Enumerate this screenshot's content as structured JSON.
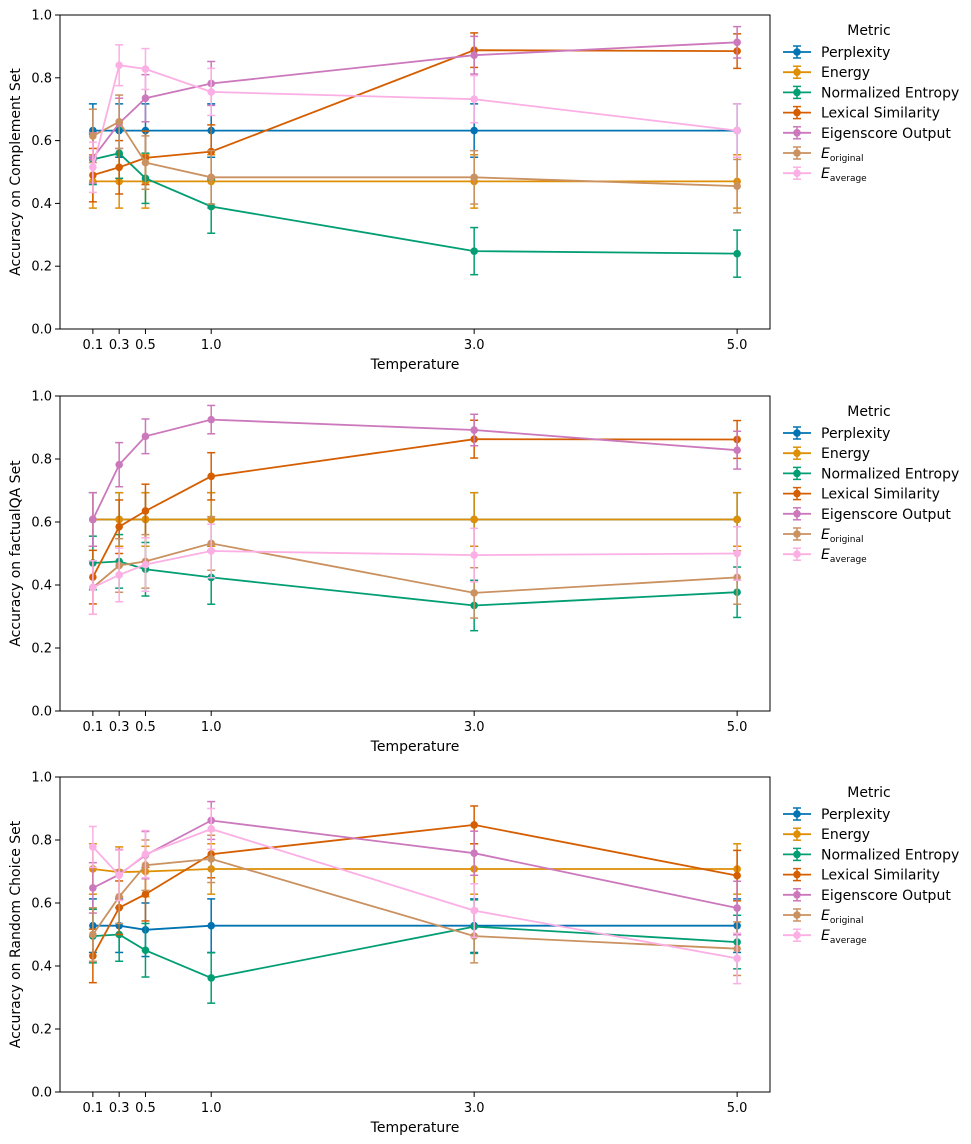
{
  "chart_data": [
    {
      "type": "line",
      "xlabel": "Temperature",
      "ylabel": "Accuracy on Complement Set",
      "ylim": [
        0,
        1
      ],
      "x": [
        0.1,
        0.3,
        0.5,
        1.0,
        3.0,
        5.0
      ],
      "x_tick_labels": [
        "0.1",
        "0.3",
        "0.5",
        "1.0",
        "3.0",
        "5.0"
      ],
      "y_ticks": [
        "0.0",
        "0.2",
        "0.4",
        "0.6",
        "0.8",
        "1.0"
      ],
      "legend_title": "Metric",
      "series": [
        {
          "name": "Perplexity",
          "color": "#0173b2",
          "values": [
            0.632,
            0.632,
            0.632,
            0.632,
            0.632,
            0.632
          ],
          "err": [
            0.085,
            0.085,
            0.085,
            0.085,
            0.085,
            0.085
          ]
        },
        {
          "name": "Energy",
          "color": "#de8f05",
          "values": [
            0.47,
            0.47,
            0.47,
            0.47,
            0.47,
            0.47
          ],
          "err": [
            0.085,
            0.085,
            0.085,
            0.085,
            0.085,
            0.085
          ]
        },
        {
          "name": "Normalized Entropy",
          "color": "#029e73",
          "values": [
            0.54,
            0.56,
            0.48,
            0.39,
            0.248,
            0.24
          ],
          "err": [
            0.08,
            0.08,
            0.08,
            0.085,
            0.075,
            0.075
          ]
        },
        {
          "name": "Lexical Similarity",
          "color": "#d55e00",
          "values": [
            0.49,
            0.515,
            0.545,
            0.565,
            0.888,
            0.885
          ],
          "err": [
            0.085,
            0.085,
            0.085,
            0.085,
            0.055,
            0.055
          ]
        },
        {
          "name": "Eigenscore Output",
          "color": "#cc78bc",
          "values": [
            0.545,
            0.655,
            0.735,
            0.782,
            0.872,
            0.913
          ],
          "err": [
            0.08,
            0.08,
            0.075,
            0.07,
            0.06,
            0.05
          ]
        },
        {
          "name": "E_original",
          "name_base": "E",
          "name_sub": "original",
          "color": "#ca9161",
          "values": [
            0.615,
            0.66,
            0.53,
            0.483,
            0.483,
            0.455
          ],
          "err": [
            0.085,
            0.085,
            0.085,
            0.085,
            0.085,
            0.085
          ]
        },
        {
          "name": "E_average",
          "name_base": "E",
          "name_sub": "average",
          "color": "#fbafe4",
          "values": [
            0.515,
            0.84,
            0.828,
            0.755,
            0.732,
            0.632
          ],
          "err": [
            0.08,
            0.065,
            0.065,
            0.075,
            0.075,
            0.085
          ]
        }
      ]
    },
    {
      "type": "line",
      "xlabel": "Temperature",
      "ylabel": "Accuracy on factualQA Set",
      "ylim": [
        0,
        1
      ],
      "x": [
        0.1,
        0.3,
        0.5,
        1.0,
        3.0,
        5.0
      ],
      "x_tick_labels": [
        "0.1",
        "0.3",
        "0.5",
        "1.0",
        "3.0",
        "5.0"
      ],
      "y_ticks": [
        "0.0",
        "0.2",
        "0.4",
        "0.6",
        "0.8",
        "1.0"
      ],
      "legend_title": "Metric",
      "series": [
        {
          "name": "Perplexity",
          "color": "#0173b2",
          "values": [
            0.608,
            0.608,
            0.608,
            0.608,
            0.608,
            0.608
          ],
          "err": [
            0.085,
            0.085,
            0.085,
            0.085,
            0.085,
            0.085
          ]
        },
        {
          "name": "Energy",
          "color": "#de8f05",
          "values": [
            0.608,
            0.608,
            0.608,
            0.608,
            0.608,
            0.608
          ],
          "err": [
            0.085,
            0.085,
            0.085,
            0.085,
            0.085,
            0.085
          ]
        },
        {
          "name": "Normalized Entropy",
          "color": "#029e73",
          "values": [
            0.47,
            0.475,
            0.45,
            0.424,
            0.335,
            0.377
          ],
          "err": [
            0.085,
            0.085,
            0.085,
            0.085,
            0.08,
            0.08
          ]
        },
        {
          "name": "Lexical Similarity",
          "color": "#d55e00",
          "values": [
            0.425,
            0.585,
            0.635,
            0.745,
            0.863,
            0.862
          ],
          "err": [
            0.085,
            0.085,
            0.085,
            0.075,
            0.06,
            0.06
          ]
        },
        {
          "name": "Eigenscore Output",
          "color": "#cc78bc",
          "values": [
            0.608,
            0.782,
            0.872,
            0.925,
            0.892,
            0.828
          ],
          "err": [
            0.085,
            0.07,
            0.055,
            0.045,
            0.05,
            0.06
          ]
        },
        {
          "name": "E_original",
          "name_base": "E",
          "name_sub": "original",
          "color": "#ca9161",
          "values": [
            0.392,
            0.462,
            0.475,
            0.532,
            0.375,
            0.424
          ],
          "err": [
            0.085,
            0.085,
            0.085,
            0.085,
            0.08,
            0.085
          ]
        },
        {
          "name": "E_average",
          "name_base": "E",
          "name_sub": "average",
          "color": "#fbafe4",
          "values": [
            0.392,
            0.432,
            0.465,
            0.508,
            0.495,
            0.5
          ],
          "err": [
            0.085,
            0.085,
            0.085,
            0.085,
            0.085,
            0.085
          ]
        }
      ]
    },
    {
      "type": "line",
      "xlabel": "Temperature",
      "ylabel": "Accuracy on Random Choice Set",
      "ylim": [
        0,
        1
      ],
      "x": [
        0.1,
        0.3,
        0.5,
        1.0,
        3.0,
        5.0
      ],
      "x_tick_labels": [
        "0.1",
        "0.3",
        "0.5",
        "1.0",
        "3.0",
        "5.0"
      ],
      "y_ticks": [
        "0.0",
        "0.2",
        "0.4",
        "0.6",
        "0.8",
        "1.0"
      ],
      "legend_title": "Metric",
      "series": [
        {
          "name": "Perplexity",
          "color": "#0173b2",
          "values": [
            0.528,
            0.528,
            0.515,
            0.528,
            0.528,
            0.528
          ],
          "err": [
            0.085,
            0.085,
            0.085,
            0.085,
            0.085,
            0.085
          ]
        },
        {
          "name": "Energy",
          "color": "#de8f05",
          "values": [
            0.708,
            0.698,
            0.7,
            0.708,
            0.708,
            0.708
          ],
          "err": [
            0.08,
            0.08,
            0.08,
            0.08,
            0.08,
            0.08
          ]
        },
        {
          "name": "Normalized Entropy",
          "color": "#029e73",
          "values": [
            0.495,
            0.5,
            0.45,
            0.362,
            0.525,
            0.476
          ],
          "err": [
            0.085,
            0.085,
            0.085,
            0.08,
            0.085,
            0.085
          ]
        },
        {
          "name": "Lexical Similarity",
          "color": "#d55e00",
          "values": [
            0.432,
            0.585,
            0.628,
            0.755,
            0.848,
            0.687
          ],
          "err": [
            0.085,
            0.085,
            0.085,
            0.075,
            0.06,
            0.08
          ]
        },
        {
          "name": "Eigenscore Output",
          "color": "#cc78bc",
          "values": [
            0.648,
            0.69,
            0.752,
            0.862,
            0.758,
            0.584
          ],
          "err": [
            0.08,
            0.08,
            0.075,
            0.06,
            0.07,
            0.085
          ]
        },
        {
          "name": "E_original",
          "name_base": "E",
          "name_sub": "original",
          "color": "#ca9161",
          "values": [
            0.5,
            0.62,
            0.72,
            0.74,
            0.495,
            0.455
          ],
          "err": [
            0.085,
            0.085,
            0.08,
            0.075,
            0.085,
            0.085
          ]
        },
        {
          "name": "E_average",
          "name_base": "E",
          "name_sub": "average",
          "color": "#fbafe4",
          "values": [
            0.778,
            0.688,
            0.755,
            0.835,
            0.576,
            0.424
          ],
          "err": [
            0.065,
            0.08,
            0.075,
            0.065,
            0.085,
            0.08
          ]
        }
      ]
    }
  ]
}
